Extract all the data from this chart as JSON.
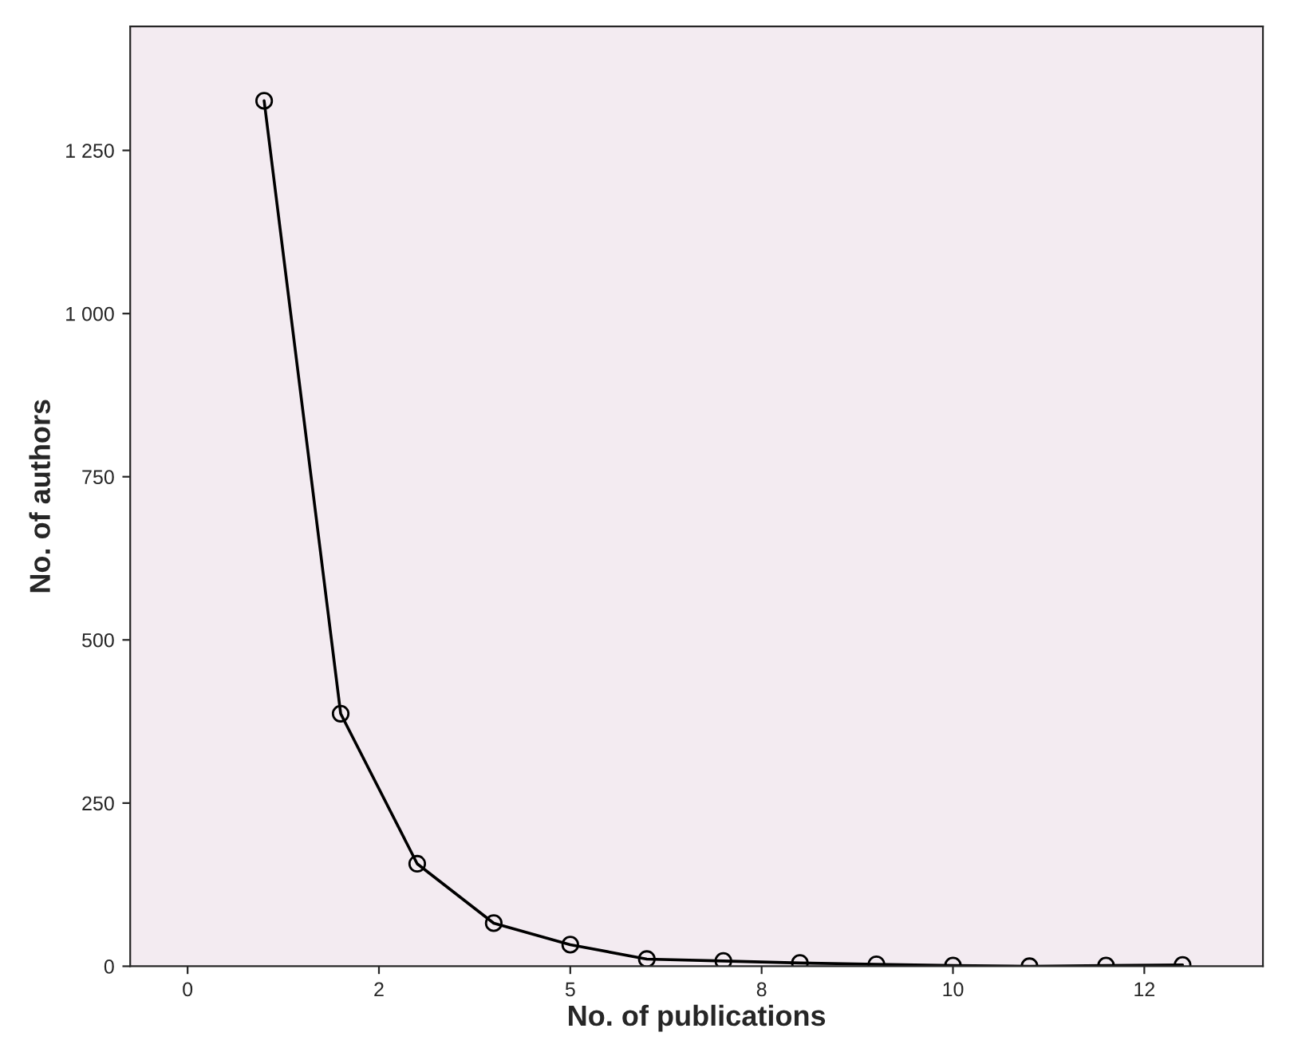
{
  "chart_data": {
    "type": "line",
    "xlabel": "No. of publications",
    "ylabel": "No. of authors",
    "x": [
      1,
      2,
      3,
      4,
      5,
      6,
      7,
      8,
      9,
      10,
      11,
      12,
      13
    ],
    "series": [
      {
        "color": "#000000",
        "values": [
          1326,
          387,
          157,
          66,
          33,
          11,
          8,
          5,
          3,
          1,
          0,
          1,
          2
        ]
      }
    ],
    "xlim": [
      -0.75,
      14.05
    ],
    "xticks": [
      0,
      {
        "value": 2.5,
        "label": "2"
      },
      5,
      {
        "value": 7.5,
        "label": "8"
      },
      10,
      {
        "value": 12.5,
        "label": "12"
      }
    ],
    "ylim": [
      0,
      1440
    ],
    "yticks": [
      0,
      250,
      500,
      750,
      {
        "value": 1000,
        "label": "1 000"
      },
      {
        "value": 1250,
        "label": "1 250"
      }
    ],
    "grid": false,
    "legend": false,
    "marker": "circle",
    "line_style": "solid"
  }
}
